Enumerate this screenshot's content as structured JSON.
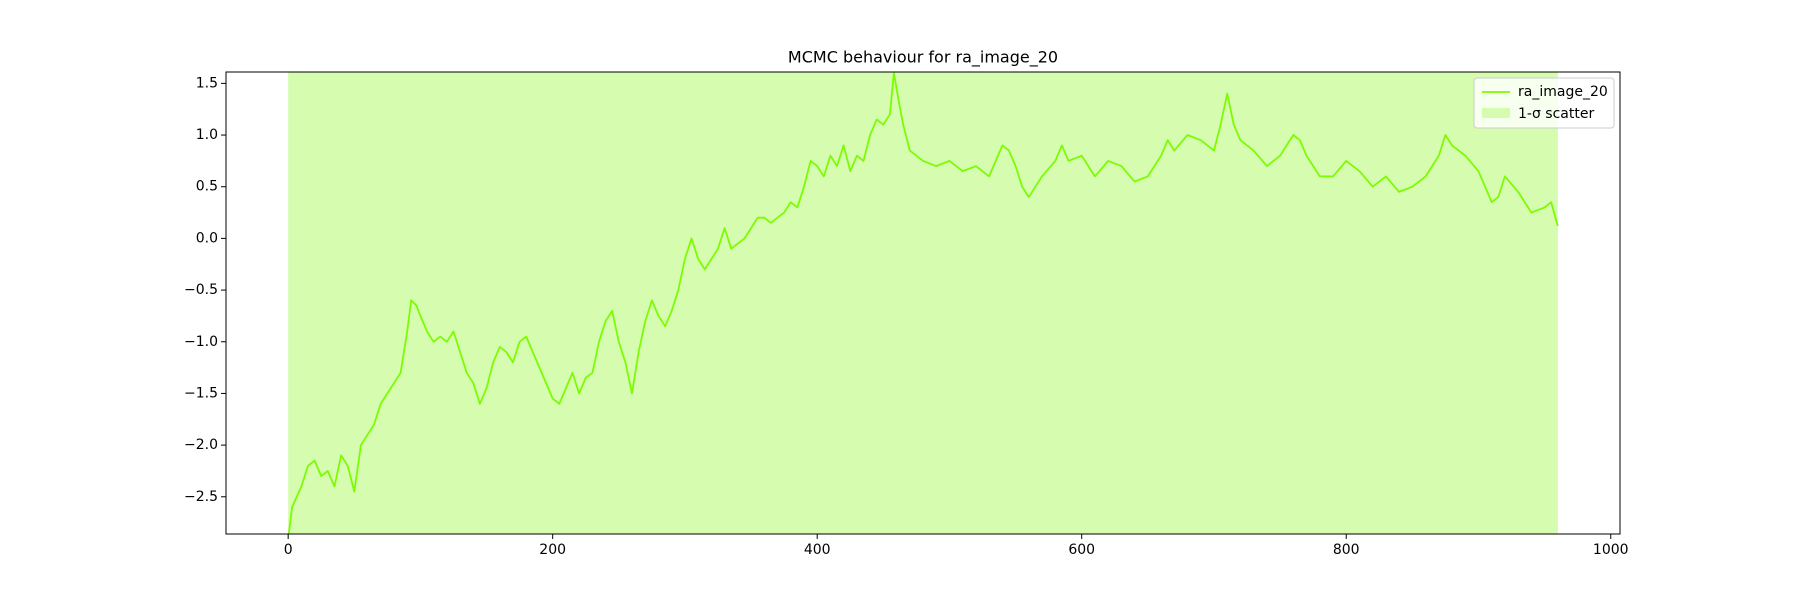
{
  "chart_data": {
    "type": "line",
    "title": "MCMC behaviour for ra_image_20",
    "series": [
      {
        "name": "ra_image_20",
        "color": "#7cfc00",
        "x": [
          0,
          3,
          10,
          15,
          20,
          25,
          30,
          35,
          40,
          45,
          50,
          55,
          60,
          65,
          70,
          75,
          80,
          85,
          90,
          93,
          97,
          100,
          105,
          110,
          115,
          120,
          125,
          130,
          135,
          140,
          145,
          150,
          155,
          160,
          165,
          170,
          175,
          180,
          185,
          190,
          195,
          200,
          205,
          210,
          215,
          220,
          225,
          230,
          235,
          240,
          245,
          250,
          255,
          260,
          265,
          270,
          275,
          280,
          285,
          290,
          295,
          300,
          305,
          310,
          315,
          320,
          325,
          330,
          335,
          340,
          345,
          350,
          355,
          360,
          365,
          370,
          375,
          380,
          385,
          390,
          395,
          400,
          405,
          410,
          415,
          420,
          425,
          430,
          435,
          440,
          445,
          450,
          455,
          458,
          462,
          465,
          470,
          475,
          480,
          490,
          500,
          510,
          520,
          530,
          540,
          545,
          550,
          555,
          560,
          565,
          570,
          580,
          585,
          590,
          600,
          610,
          620,
          630,
          640,
          650,
          660,
          665,
          670,
          680,
          690,
          700,
          705,
          710,
          715,
          720,
          730,
          740,
          750,
          760,
          765,
          770,
          780,
          790,
          800,
          810,
          820,
          830,
          840,
          850,
          860,
          870,
          875,
          880,
          890,
          900,
          905,
          910,
          915,
          920,
          930,
          940,
          950,
          955,
          960
        ],
        "values": [
          -2.9,
          -2.6,
          -2.4,
          -2.2,
          -2.15,
          -2.3,
          -2.25,
          -2.4,
          -2.1,
          -2.2,
          -2.45,
          -2.0,
          -1.9,
          -1.8,
          -1.6,
          -1.5,
          -1.4,
          -1.3,
          -0.9,
          -0.6,
          -0.65,
          -0.75,
          -0.9,
          -1.0,
          -0.95,
          -1.0,
          -0.9,
          -1.1,
          -1.3,
          -1.4,
          -1.6,
          -1.45,
          -1.2,
          -1.05,
          -1.1,
          -1.2,
          -1.0,
          -0.95,
          -1.1,
          -1.25,
          -1.4,
          -1.55,
          -1.6,
          -1.45,
          -1.3,
          -1.5,
          -1.35,
          -1.3,
          -1.0,
          -0.8,
          -0.7,
          -1.0,
          -1.2,
          -1.5,
          -1.1,
          -0.8,
          -0.6,
          -0.75,
          -0.85,
          -0.7,
          -0.5,
          -0.2,
          0.0,
          -0.2,
          -0.3,
          -0.2,
          -0.1,
          0.1,
          -0.1,
          -0.05,
          0.0,
          0.1,
          0.2,
          0.2,
          0.15,
          0.2,
          0.25,
          0.35,
          0.3,
          0.5,
          0.75,
          0.7,
          0.6,
          0.8,
          0.7,
          0.9,
          0.65,
          0.8,
          0.75,
          1.0,
          1.15,
          1.1,
          1.2,
          1.6,
          1.3,
          1.1,
          0.85,
          0.8,
          0.75,
          0.7,
          0.75,
          0.65,
          0.7,
          0.6,
          0.9,
          0.85,
          0.7,
          0.5,
          0.4,
          0.5,
          0.6,
          0.75,
          0.9,
          0.75,
          0.8,
          0.6,
          0.75,
          0.7,
          0.55,
          0.6,
          0.8,
          0.95,
          0.85,
          1.0,
          0.95,
          0.85,
          1.1,
          1.4,
          1.1,
          0.95,
          0.85,
          0.7,
          0.8,
          1.0,
          0.95,
          0.8,
          0.6,
          0.6,
          0.75,
          0.65,
          0.5,
          0.6,
          0.45,
          0.5,
          0.6,
          0.8,
          1.0,
          0.9,
          0.8,
          0.65,
          0.5,
          0.35,
          0.4,
          0.6,
          0.45,
          0.25,
          0.3,
          0.35,
          0.12
        ]
      }
    ],
    "band": {
      "name": "1-σ scatter",
      "color": "#d6fcb0",
      "x": [
        0,
        960
      ],
      "lower": -2.86,
      "upper": 1.61
    },
    "xlim": [
      -47,
      1007
    ],
    "ylim": [
      -2.86,
      1.61
    ],
    "xticks": [
      0,
      200,
      400,
      600,
      800,
      1000
    ],
    "yticks": [
      {
        "value": -2.5,
        "label": "−2.5"
      },
      {
        "value": -2.0,
        "label": "−2.0"
      },
      {
        "value": -1.5,
        "label": "−1.5"
      },
      {
        "value": -1.0,
        "label": "−1.0"
      },
      {
        "value": -0.5,
        "label": "−0.5"
      },
      {
        "value": 0.0,
        "label": "0.0"
      },
      0.5,
      {
        "value": 1.0,
        "label": "1.0"
      },
      1.5
    ],
    "legend": "upper right"
  }
}
